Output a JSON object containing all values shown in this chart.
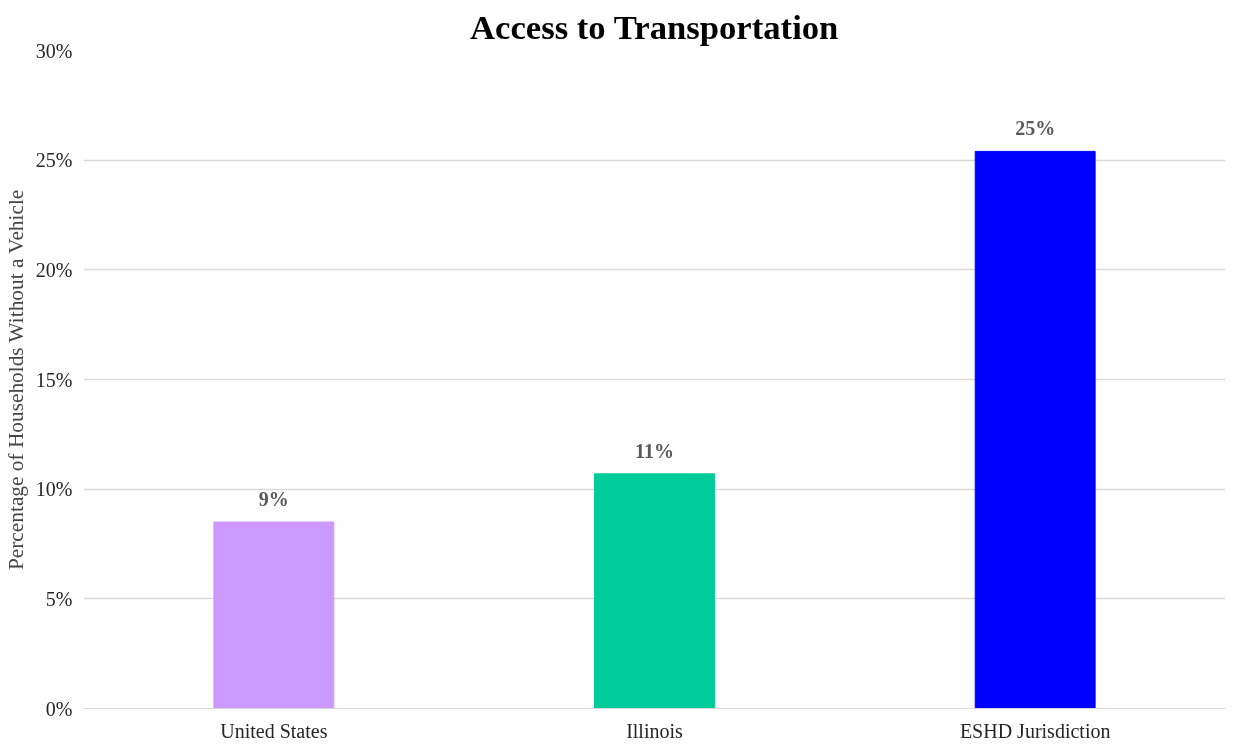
{
  "chart_data": {
    "type": "bar",
    "title": "Access to Transportation",
    "ylabel": "Percentage of Households Without a Vehicle",
    "categories": [
      "United States",
      "Illinois",
      "ESHD Jurisdiction"
    ],
    "values": [
      8.5,
      10.7,
      25.4
    ],
    "value_labels": [
      "9%",
      "11%",
      "25%"
    ],
    "colors": [
      "#cc99ff",
      "#00cc99",
      "#0000ff"
    ],
    "ylim": [
      0,
      30
    ],
    "yticks": [
      {
        "value": 0,
        "label": "0%"
      },
      {
        "value": 5,
        "label": "5%"
      },
      {
        "value": 10,
        "label": "10%"
      },
      {
        "value": 15,
        "label": "15%"
      },
      {
        "value": 20,
        "label": "20%"
      },
      {
        "value": 25,
        "label": "25%"
      },
      {
        "value": 30,
        "label": "30%"
      }
    ],
    "grid": "y"
  }
}
